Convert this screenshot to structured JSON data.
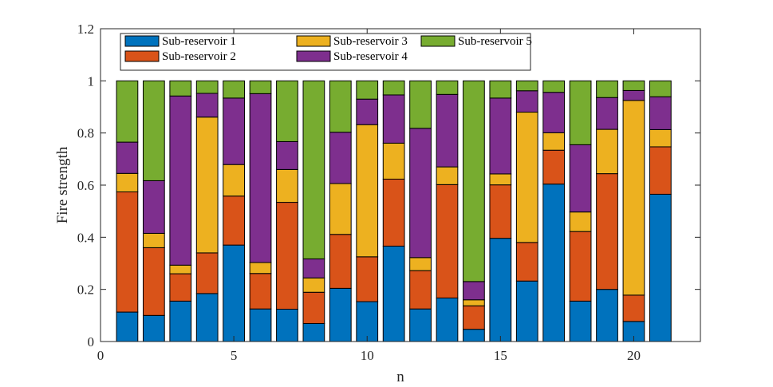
{
  "chart_data": {
    "type": "bar",
    "stacked": true,
    "title": "",
    "xlabel": "n",
    "ylabel": "Fire strength",
    "xlim": [
      0,
      22.5
    ],
    "ylim": [
      0,
      1.2
    ],
    "xticks": [
      0,
      5,
      10,
      15,
      20
    ],
    "yticks": [
      0,
      0.2,
      0.4,
      0.6,
      0.8,
      1,
      1.2
    ],
    "ytick_labels": [
      "0",
      "0.2",
      "0.4",
      "0.6",
      "0.8",
      "1",
      "1.2"
    ],
    "grid": false,
    "legend_position": "top-left",
    "x": [
      1,
      2,
      3,
      4,
      5,
      6,
      7,
      8,
      9,
      10,
      11,
      12,
      13,
      14,
      15,
      16,
      17,
      18,
      19,
      20,
      21
    ],
    "series": [
      {
        "name": "Sub-reservoir 1",
        "color": "#0072BD",
        "values": [
          0.113,
          0.1,
          0.155,
          0.184,
          0.37,
          0.125,
          0.124,
          0.069,
          0.204,
          0.153,
          0.366,
          0.125,
          0.167,
          0.047,
          0.396,
          0.232,
          0.604,
          0.155,
          0.2,
          0.077,
          0.565
        ]
      },
      {
        "name": "Sub-reservoir 2",
        "color": "#D95319",
        "values": [
          0.461,
          0.26,
          0.105,
          0.156,
          0.188,
          0.136,
          0.41,
          0.12,
          0.207,
          0.172,
          0.257,
          0.147,
          0.435,
          0.09,
          0.205,
          0.148,
          0.13,
          0.267,
          0.444,
          0.101,
          0.182
        ]
      },
      {
        "name": "Sub-reservoir 3",
        "color": "#EDB120",
        "values": [
          0.071,
          0.055,
          0.033,
          0.521,
          0.121,
          0.042,
          0.126,
          0.055,
          0.195,
          0.507,
          0.138,
          0.05,
          0.068,
          0.023,
          0.042,
          0.5,
          0.067,
          0.075,
          0.17,
          0.747,
          0.066
        ]
      },
      {
        "name": "Sub-reservoir 4",
        "color": "#7E2F8E",
        "values": [
          0.12,
          0.202,
          0.649,
          0.091,
          0.255,
          0.648,
          0.107,
          0.073,
          0.197,
          0.098,
          0.185,
          0.496,
          0.278,
          0.07,
          0.291,
          0.082,
          0.155,
          0.258,
          0.122,
          0.038,
          0.126
        ]
      },
      {
        "name": "Sub-reservoir 5",
        "color": "#77AC30",
        "values": [
          0.235,
          0.383,
          0.058,
          0.048,
          0.066,
          0.049,
          0.233,
          0.683,
          0.197,
          0.07,
          0.054,
          0.182,
          0.052,
          0.77,
          0.066,
          0.038,
          0.044,
          0.245,
          0.064,
          0.037,
          0.061
        ]
      }
    ]
  }
}
